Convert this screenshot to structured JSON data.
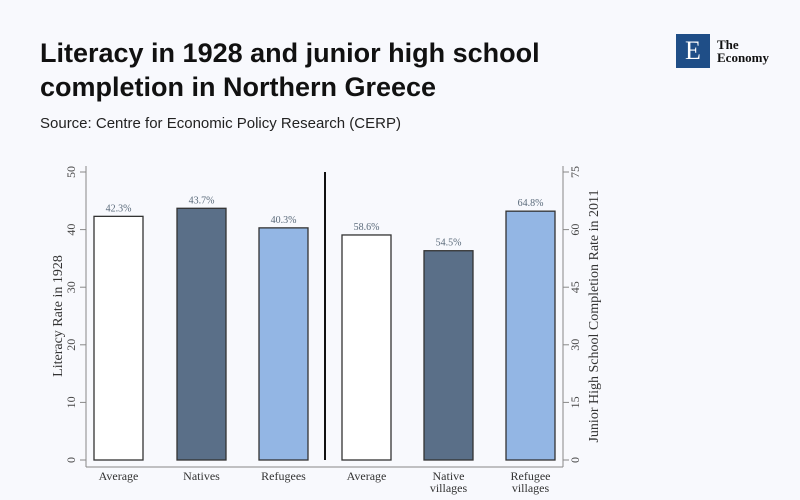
{
  "header": {
    "title": "Literacy in 1928 and junior high school completion in Northern Greece",
    "source": "Source: Centre for Economic Policy Research (CERP)"
  },
  "logo": {
    "letter": "E",
    "line1": "The",
    "line2": "Economy"
  },
  "chart_data": [
    {
      "type": "bar",
      "title": "",
      "ylabel": "Literacy Rate in 1928",
      "ylim": [
        0,
        50
      ],
      "yticks": [
        0,
        10,
        20,
        30,
        40,
        50
      ],
      "categories": [
        "Average",
        "Natives",
        "Refugees"
      ],
      "values": [
        42.3,
        43.7,
        40.3
      ],
      "labels": [
        "42.3%",
        "43.7%",
        "40.3%"
      ],
      "colors": [
        "#ffffff",
        "#5a6f88",
        "#93b6e4"
      ]
    },
    {
      "type": "bar",
      "title": "",
      "ylabel": "Junior High School Completion Rate in 2011",
      "ylim": [
        0,
        75
      ],
      "yticks": [
        0,
        15,
        30,
        45,
        60,
        75
      ],
      "categories": [
        "Average",
        "Native villages",
        "Refugee villages"
      ],
      "values": [
        58.6,
        54.5,
        64.8
      ],
      "labels": [
        "58.6%",
        "54.5%",
        "64.8%"
      ],
      "colors": [
        "#ffffff",
        "#5a6f88",
        "#93b6e4"
      ]
    }
  ]
}
